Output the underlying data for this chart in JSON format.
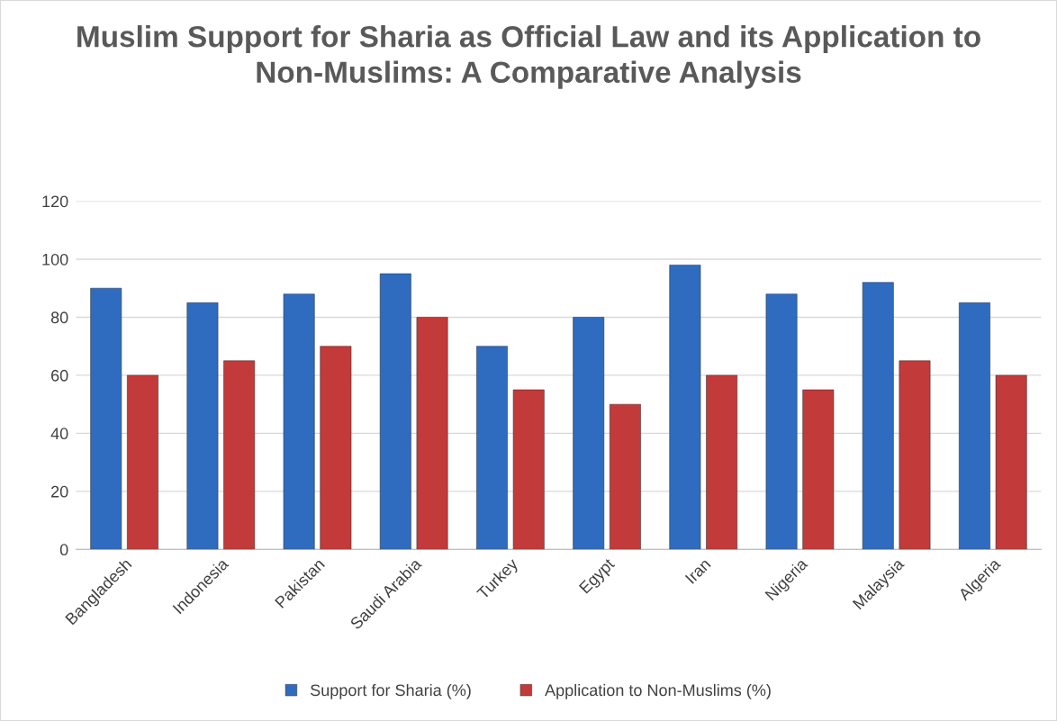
{
  "chart_data": {
    "type": "bar",
    "title": "Muslim Support for Sharia as Official Law and its Application to Non-Muslims: A Comparative Analysis",
    "categories": [
      "Bangladesh",
      "Indonesia",
      "Pakistan",
      "Saudi Arabia",
      "Turkey",
      "Egypt",
      "Iran",
      "Nigeria",
      "Malaysia",
      "Algeria"
    ],
    "series": [
      {
        "name": "Support for Sharia (%)",
        "color": "#2f6cc0",
        "values": [
          90,
          85,
          88,
          95,
          70,
          80,
          98,
          88,
          92,
          85
        ]
      },
      {
        "name": "Application to Non-Muslims (%)",
        "color": "#c33a3a",
        "values": [
          60,
          65,
          70,
          80,
          55,
          50,
          60,
          55,
          65,
          60
        ]
      }
    ],
    "ylim": [
      0,
      120
    ],
    "yticks": [
      0,
      20,
      40,
      60,
      80,
      100,
      120
    ],
    "grid": "y",
    "legend": "bottom"
  }
}
